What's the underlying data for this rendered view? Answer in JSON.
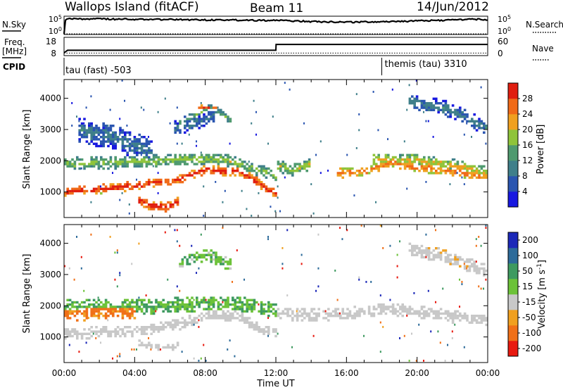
{
  "header": {
    "title": "Wallops Island (fitACF)",
    "beam": "Beam 11",
    "date": "14/Jun/2012"
  },
  "noise_panel": {
    "left_label": "N.Sky",
    "left_ticks": [
      "10^5",
      "10^0"
    ],
    "right_label": "N.Search",
    "right_ticks": [
      "10^5",
      "10^0"
    ]
  },
  "freq_panel": {
    "left_label_line1": "Freq.",
    "left_label_line2": "[MHz]",
    "left_ticks": [
      "18",
      "8"
    ],
    "right_label": "Nave",
    "right_ticks": [
      "60",
      "0"
    ],
    "freq_steps": [
      {
        "t": 0.0,
        "v": 10.0
      },
      {
        "t": 12.0,
        "v": 14.6
      }
    ]
  },
  "cpid_panel": {
    "label": "CPID",
    "modes": [
      {
        "t": 0.0,
        "text": "tau (fast) -503"
      },
      {
        "t": 18.0,
        "text": "themis (tau) 3310"
      }
    ]
  },
  "x_axis": {
    "label": "Time UT",
    "ticks": [
      "00:00",
      "04:00",
      "08:00",
      "12:00",
      "16:00",
      "20:00",
      "00:00"
    ],
    "range_hours": [
      0,
      24
    ]
  },
  "power_panel": {
    "ylabel": "Slant Range [km]",
    "yticks": [
      "1000",
      "2000",
      "3000",
      "4000"
    ],
    "cbar_label": "Power [dB]",
    "cbar_ticks": [
      "4",
      "8",
      "12",
      "16",
      "20",
      "24",
      "28"
    ],
    "colors": [
      "#1818e0",
      "#2a55b0",
      "#3f7f8a",
      "#4f9a6f",
      "#8fc43a",
      "#f0a020",
      "#f06a18",
      "#e01e10"
    ]
  },
  "velocity_panel": {
    "ylabel": "Slant Range [km]",
    "yticks": [
      "1000",
      "2000",
      "3000",
      "4000"
    ],
    "cbar_label": "Velocity [m s^-1]",
    "cbar_ticks": [
      "200",
      "100",
      "50",
      "15",
      "-15",
      "-50",
      "-100",
      "-200"
    ],
    "colors": [
      "#1c28b8",
      "#2d6b9a",
      "#3e9a60",
      "#6cc238",
      "#c8c8c8",
      "#f0a020",
      "#f07018",
      "#e81a10"
    ]
  },
  "chart_data": [
    {
      "type": "line",
      "title": "N.Sky / N.Search",
      "yscale": "log",
      "ylim": [
        1,
        100000
      ],
      "xlim": [
        0,
        24
      ],
      "series": [
        {
          "name": "N.Sky",
          "x": [
            0,
            0.2,
            2,
            4,
            6,
            8,
            10,
            12,
            14,
            16,
            18,
            20,
            22,
            23,
            24
          ],
          "values": [
            1,
            20000,
            18000,
            14000,
            12000,
            10000,
            9000,
            7000,
            3500,
            2500,
            3000,
            5000,
            9000,
            15000,
            12000
          ]
        },
        {
          "name": "N.Search",
          "x": [
            0,
            24
          ],
          "values": [
            1,
            1
          ]
        }
      ]
    },
    {
      "type": "line",
      "title": "Freq. / Nave",
      "xlim": [
        0,
        24
      ],
      "series": [
        {
          "name": "Freq. [MHz]",
          "x": [
            0,
            0.2,
            12,
            12.01,
            24
          ],
          "values": [
            8,
            10,
            10,
            14.6,
            14.6
          ]
        },
        {
          "name": "Nave",
          "x": [
            0,
            24
          ],
          "values": [
            2,
            2
          ]
        }
      ]
    },
    {
      "type": "heatmap",
      "title": "Power [dB]",
      "xlim": [
        0,
        24
      ],
      "ylim": [
        180,
        4600
      ],
      "clim": [
        0,
        32
      ],
      "bands": [
        {
          "t": [
            0,
            4,
            6.5,
            8,
            10,
            11,
            11.5,
            12
          ],
          "r": [
            1000,
            1200,
            1400,
            1700,
            1650,
            1300,
            1050,
            1000
          ],
          "w": 150,
          "p": 26
        },
        {
          "t": [
            4.2,
            5,
            5.8,
            6.5
          ],
          "r": [
            750,
            550,
            500,
            700
          ],
          "w": 150,
          "p": 27
        },
        {
          "t": [
            0,
            3,
            5,
            7,
            9,
            11,
            12
          ],
          "r": [
            1900,
            1950,
            2000,
            2050,
            2050,
            1700,
            1500
          ],
          "w": 200,
          "p": 14
        },
        {
          "t": [
            12,
            13,
            14
          ],
          "r": [
            1850,
            1700,
            1900
          ],
          "w": 200,
          "p": 15
        },
        {
          "t": [
            15.5,
            17,
            18.5,
            20,
            22,
            24
          ],
          "r": [
            1600,
            1650,
            1950,
            1800,
            1650,
            1500
          ],
          "w": 150,
          "p": 22
        },
        {
          "t": [
            17.5,
            20,
            22,
            24
          ],
          "r": [
            2050,
            2000,
            1850,
            1600
          ],
          "w": 200,
          "p": 17
        },
        {
          "t": [
            6.5,
            7.5,
            8.3,
            9.5
          ],
          "r": [
            3200,
            3500,
            3700,
            3300
          ],
          "w": 130,
          "p": 12
        },
        {
          "t": [
            6.2,
            7.5,
            8.5
          ],
          "r": [
            3000,
            3200,
            3450
          ],
          "w": 250,
          "p": 6
        },
        {
          "t": [
            19.5,
            21.5,
            24
          ],
          "r": [
            3900,
            3700,
            3050
          ],
          "w": 250,
          "p": 7
        },
        {
          "t": [
            0.8,
            3,
            5
          ],
          "r": [
            3000,
            2700,
            2300
          ],
          "w": 400,
          "p": 6
        },
        {
          "t": [
            7.6,
            8.2,
            8.7
          ],
          "r": [
            3700,
            3700,
            3650
          ],
          "w": 80,
          "p": 24
        }
      ]
    },
    {
      "type": "heatmap",
      "title": "Velocity [m s^-1]",
      "xlim": [
        0,
        24
      ],
      "ylim": [
        180,
        4600
      ],
      "clim": [
        -200,
        200
      ],
      "bands": [
        {
          "t": [
            0,
            4,
            6.5,
            8,
            10,
            11,
            12
          ],
          "r": [
            1100,
            1200,
            1400,
            1700,
            1650,
            1300,
            1100
          ],
          "w": 180,
          "v": 0
        },
        {
          "t": [
            4.2,
            5.5,
            6.5
          ],
          "r": [
            800,
            650,
            700
          ],
          "w": 120,
          "v": 0
        },
        {
          "t": [
            12,
            14,
            16,
            18,
            20,
            22,
            24
          ],
          "r": [
            1750,
            1700,
            1750,
            1900,
            1800,
            1650,
            1550
          ],
          "w": 200,
          "v": 0
        },
        {
          "t": [
            0,
            3,
            6,
            8,
            10,
            12
          ],
          "r": [
            1950,
            1950,
            2000,
            2050,
            2050,
            1850
          ],
          "w": 250,
          "v": 30
        },
        {
          "t": [
            6.5,
            8,
            9.5
          ],
          "r": [
            3300,
            3650,
            3300
          ],
          "w": 200,
          "v": 25
        },
        {
          "t": [
            19.5,
            21.5,
            24
          ],
          "r": [
            3800,
            3600,
            3100
          ],
          "w": 220,
          "v": -5
        },
        {
          "t": [
            0,
            2,
            4
          ],
          "r": [
            1800,
            1850,
            1900
          ],
          "w": 300,
          "v": -60
        }
      ]
    }
  ]
}
